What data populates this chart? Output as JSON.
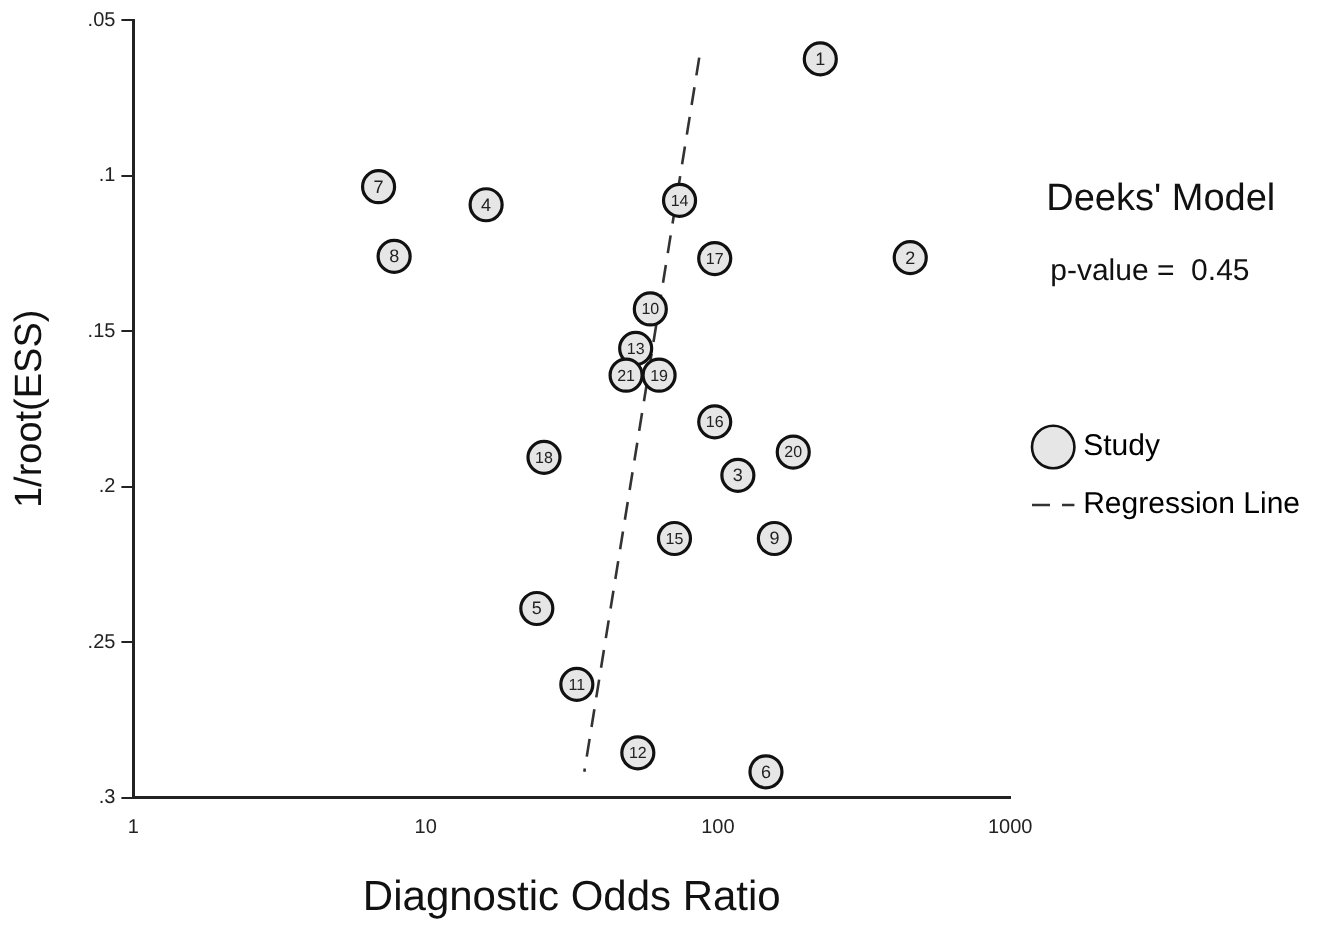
{
  "chart_data": {
    "type": "scatter",
    "xlabel": "Diagnostic Odds Ratio",
    "ylabel": "1/root(ESS)",
    "annotations": [
      "Deeks' Model",
      "p-value =  0.45",
      {
        "text": "1",
        "x": 224,
        "y": 0.0625
      },
      {
        "text": "2",
        "x": 455,
        "y": 0.1264
      },
      {
        "text": "3",
        "x": 117,
        "y": 0.1964
      },
      {
        "text": "4",
        "x": 16.1,
        "y": 0.1094
      },
      {
        "text": "5",
        "x": 24,
        "y": 0.2392
      },
      {
        "text": "6",
        "x": 146,
        "y": 0.2917
      },
      {
        "text": "7",
        "x": 6.9,
        "y": 0.1036
      },
      {
        "text": "8",
        "x": 7.8,
        "y": 0.126
      },
      {
        "text": "9",
        "x": 156,
        "y": 0.2167
      },
      {
        "text": "10",
        "x": 58.7,
        "y": 0.1429
      },
      {
        "text": "11",
        "x": 32.9,
        "y": 0.2636
      },
      {
        "text": "12",
        "x": 53.2,
        "y": 0.2856
      },
      {
        "text": "13",
        "x": 52.3,
        "y": 0.1556
      },
      {
        "text": "14",
        "x": 73.9,
        "y": 0.108
      },
      {
        "text": "15",
        "x": 71,
        "y": 0.2167
      },
      {
        "text": "16",
        "x": 97.5,
        "y": 0.1792
      },
      {
        "text": "17",
        "x": 97.5,
        "y": 0.1267
      },
      {
        "text": "18",
        "x": 25.4,
        "y": 0.1906
      },
      {
        "text": "19",
        "x": 62.9,
        "y": 0.1642
      },
      {
        "text": "20",
        "x": 181,
        "y": 0.1889
      },
      {
        "text": "21",
        "x": 48.5,
        "y": 0.1642
      }
    ],
    "log": "x",
    "xlim": [
      1,
      1000
    ],
    "xticks": [
      1,
      10,
      100,
      1000
    ],
    "ylim": [
      0.3,
      0.05
    ],
    "yticks": [
      {
        "value": 0.05,
        "label": ".05"
      },
      {
        "value": 0.1,
        "label": ".1"
      },
      {
        "value": 0.15,
        "label": ".15"
      },
      {
        "value": 0.2,
        "label": ".2"
      },
      {
        "value": 0.25,
        "label": ".25"
      },
      {
        "value": 0.3,
        "label": ".3"
      }
    ],
    "grid": false,
    "legend": "right",
    "marker": "circle",
    "series": [
      {
        "name": "Study",
        "color": "#e6e6e6",
        "x": [
          224,
          455,
          117,
          16.1,
          24,
          146,
          6.9,
          7.8,
          156,
          58.7,
          32.9,
          53.2,
          52.3,
          73.9,
          71,
          97.5,
          97.5,
          25.4,
          62.9,
          181,
          48.5
        ],
        "values": [
          0.0625,
          0.1264,
          0.1964,
          0.1094,
          0.2392,
          0.2917,
          0.1036,
          0.126,
          0.2167,
          0.1429,
          0.2636,
          0.2856,
          0.1556,
          0.108,
          0.2167,
          0.1792,
          0.1267,
          0.1906,
          0.1642,
          0.1889,
          0.1642
        ]
      },
      {
        "name": "Regression Line",
        "type": "line",
        "color": "#333333",
        "line_style": "dashed",
        "marker": "none",
        "x": [
          86.3,
          34.9
        ],
        "values": [
          0.0621,
          0.2917
        ]
      }
    ]
  }
}
